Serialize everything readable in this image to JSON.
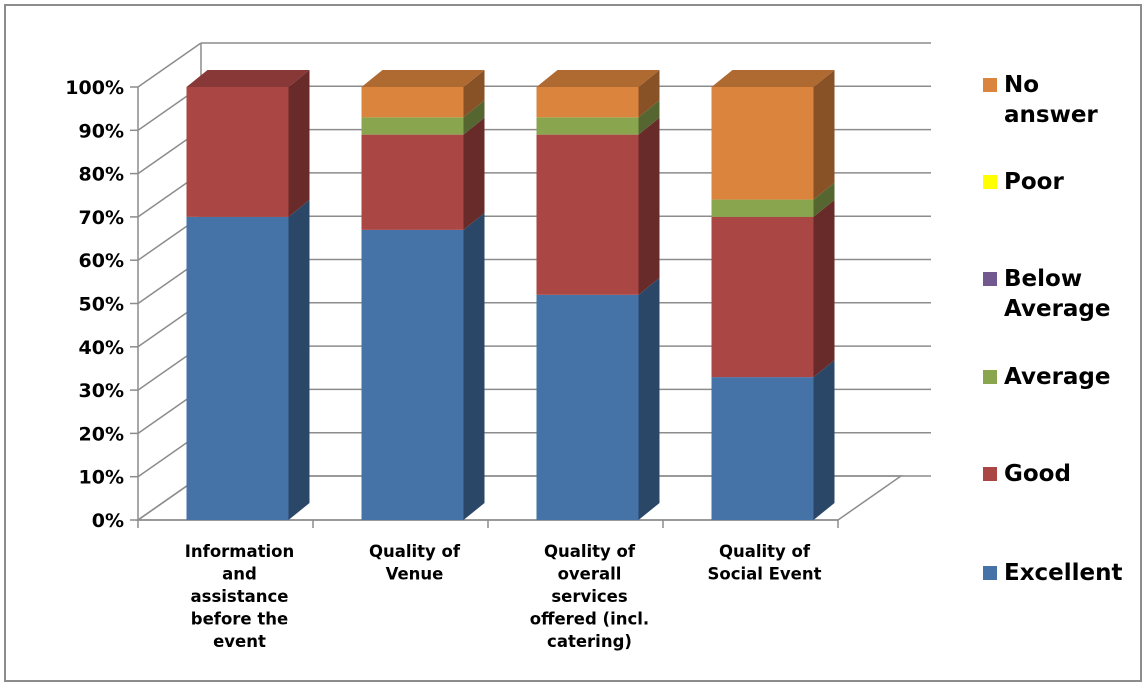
{
  "chart_data": {
    "type": "bar",
    "stacked": true,
    "three_d": true,
    "percent_stacked": true,
    "title": "",
    "xlabel": "",
    "ylabel": "",
    "ylim": [
      0,
      100
    ],
    "y_ticks": [
      "0%",
      "10%",
      "20%",
      "30%",
      "40%",
      "50%",
      "60%",
      "70%",
      "80%",
      "90%",
      "100%"
    ],
    "categories": [
      "Information and assistance before the event",
      "Quality of Venue",
      "Quality of overall services offered (incl. catering)",
      "Quality of Social Event"
    ],
    "category_lines": [
      [
        "Information",
        "and",
        "assistance",
        "before the",
        "event"
      ],
      [
        "Quality of",
        "Venue"
      ],
      [
        "Quality of",
        "overall",
        "services",
        "offered (incl.",
        "catering)"
      ],
      [
        "Quality of",
        "Social Event"
      ]
    ],
    "series": [
      {
        "name": "Excellent",
        "color": "#4572a7",
        "values": [
          70,
          67,
          52,
          33
        ]
      },
      {
        "name": "Good",
        "color": "#aa4643",
        "values": [
          30,
          22,
          37,
          37
        ]
      },
      {
        "name": "Average",
        "color": "#89a54e",
        "values": [
          0,
          4,
          4,
          4
        ]
      },
      {
        "name": "Below Average",
        "color": "#71588f",
        "values": [
          0,
          0,
          0,
          0
        ]
      },
      {
        "name": "Poor",
        "color": "#ffff00",
        "values": [
          0,
          0,
          0,
          0
        ]
      },
      {
        "name": "No answer",
        "color": "#db843d",
        "values": [
          0,
          7,
          7,
          26
        ]
      }
    ],
    "grid": true,
    "legend_position": "right",
    "legend_order": [
      {
        "lines": [
          "No",
          "answer"
        ],
        "color": "#db843d"
      },
      {
        "lines": [
          "Poor"
        ],
        "color": "#ffff00"
      },
      {
        "lines": [
          "Below",
          "Average"
        ],
        "color": "#71588f"
      },
      {
        "lines": [
          "Average"
        ],
        "color": "#89a54e"
      },
      {
        "lines": [
          "Good"
        ],
        "color": "#aa4643"
      },
      {
        "lines": [
          "Excellent"
        ],
        "color": "#4572a7"
      }
    ]
  }
}
